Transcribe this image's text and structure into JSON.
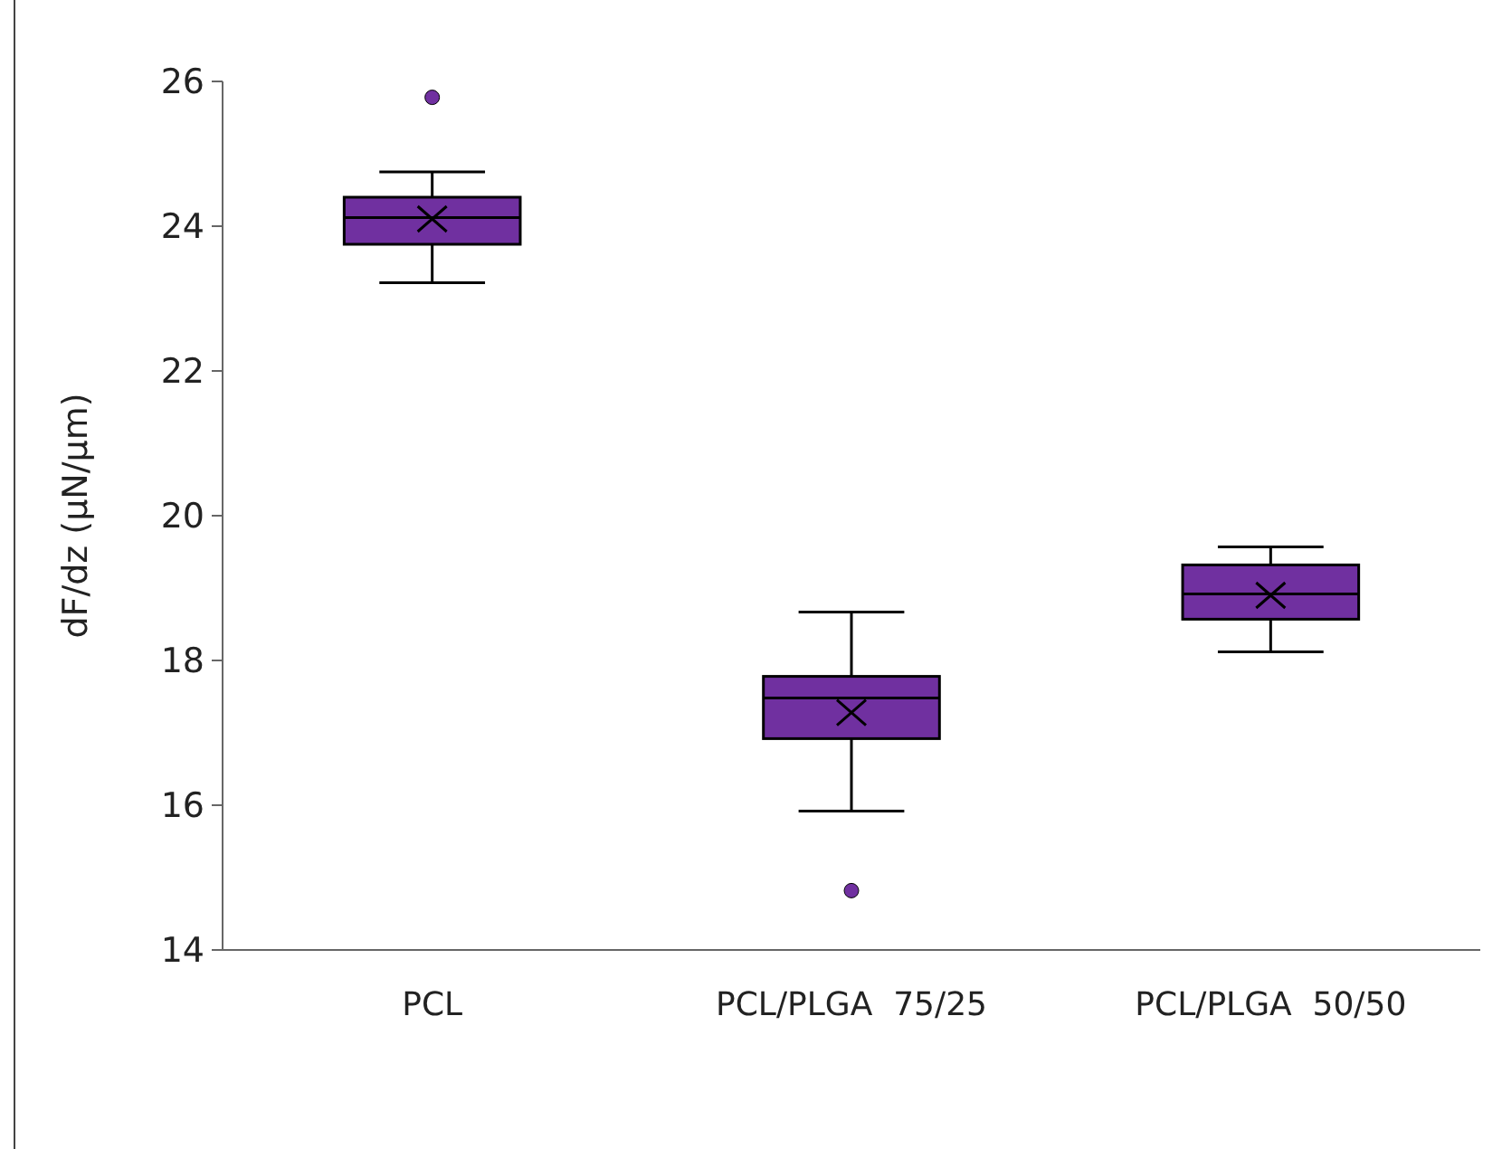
{
  "chart_data": {
    "type": "box",
    "ylabel": "dF/dz (μN/μm)",
    "categories": [
      "PCL",
      "PCL/PLGA  75/25",
      "PCL/PLGA  50/50"
    ],
    "color": "#7030a0",
    "boxes": [
      {
        "low": 23.22,
        "q1": 23.75,
        "median": 24.12,
        "q3": 24.4,
        "high": 24.75,
        "mean": 24.1,
        "outliers": [
          25.78
        ]
      },
      {
        "low": 15.92,
        "q1": 16.92,
        "median": 17.48,
        "q3": 17.78,
        "high": 18.67,
        "mean": 17.28,
        "outliers": [
          14.82
        ]
      },
      {
        "low": 18.12,
        "q1": 18.57,
        "median": 18.92,
        "q3": 19.32,
        "high": 19.57,
        "mean": 18.9
      }
    ],
    "ylim": [
      14,
      26
    ],
    "yticks": [
      14,
      16,
      18,
      20,
      22,
      24,
      26
    ],
    "grid": false
  }
}
